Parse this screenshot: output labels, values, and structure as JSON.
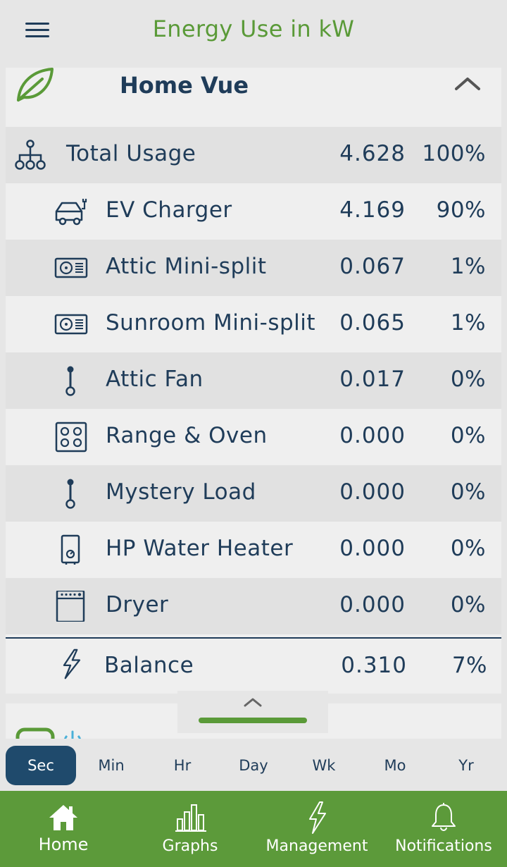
{
  "header": {
    "title": "Energy Use in kW"
  },
  "card": {
    "title": "Home Vue",
    "total": {
      "label": "Total Usage",
      "value": "4.628",
      "percent": "100%"
    },
    "devices": [
      {
        "label": "EV Charger",
        "value": "4.169",
        "percent": "90%",
        "icon": "ev-charger-icon"
      },
      {
        "label": "Attic Mini-split",
        "value": "0.067",
        "percent": "1%",
        "icon": "mini-split-icon"
      },
      {
        "label": "Sunroom Mini-split",
        "value": "0.065",
        "percent": "1%",
        "icon": "mini-split-icon"
      },
      {
        "label": "Attic Fan",
        "value": "0.017",
        "percent": "0%",
        "icon": "plug-icon"
      },
      {
        "label": "Range & Oven",
        "value": "0.000",
        "percent": "0%",
        "icon": "range-icon"
      },
      {
        "label": "Mystery Load",
        "value": "0.000",
        "percent": "0%",
        "icon": "plug-icon"
      },
      {
        "label": "HP Water Heater",
        "value": "0.000",
        "percent": "0%",
        "icon": "water-heater-icon"
      },
      {
        "label": "Dryer",
        "value": "0.000",
        "percent": "0%",
        "icon": "dryer-icon"
      }
    ],
    "balance": {
      "label": "Balance",
      "value": "0.310",
      "percent": "7%"
    }
  },
  "time_ranges": {
    "items": [
      "Sec",
      "Min",
      "Hr",
      "Day",
      "Wk",
      "Mo",
      "Yr"
    ],
    "selected": "Sec"
  },
  "tabbar": {
    "home": "Home",
    "graphs": "Graphs",
    "management": "Management",
    "notifications": "Notifications"
  },
  "colors": {
    "brand_green": "#5c9a3a",
    "navy": "#1f3c59",
    "selected": "#1f4a6c"
  }
}
